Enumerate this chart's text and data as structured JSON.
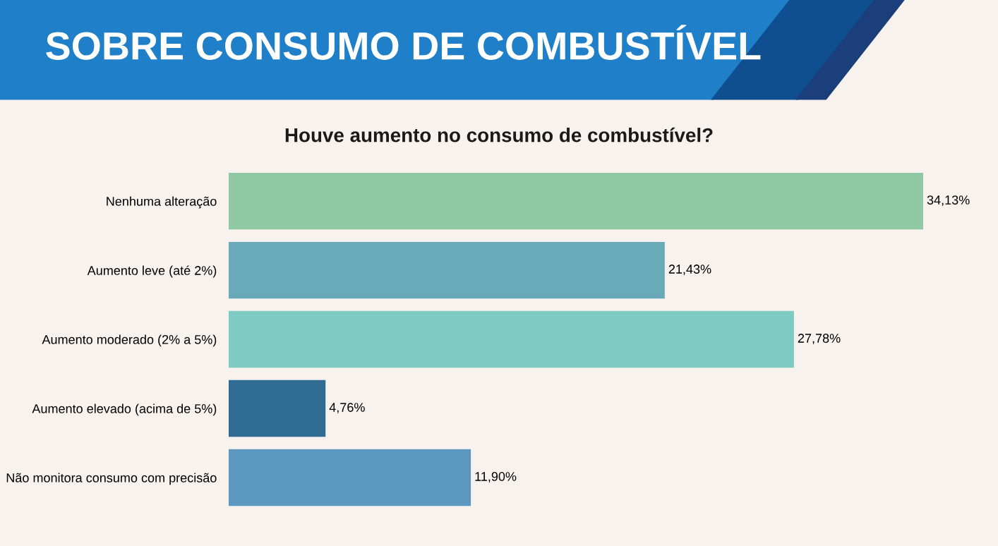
{
  "chart_data": {
    "type": "bar",
    "orientation": "horizontal",
    "title": "SOBRE CONSUMO DE COMBUSTÍVEL",
    "subtitle": "Houve aumento no consumo de combustível?",
    "categories": [
      "Nenhuma alteração",
      "Aumento leve (até 2%)",
      "Aumento moderado (2% a 5%)",
      "Aumento elevado (acima de 5%)",
      "Não monitora consumo com precisão"
    ],
    "values": [
      34.13,
      21.43,
      27.78,
      4.76,
      11.9
    ],
    "value_labels": [
      "34,13%",
      "21,43%",
      "27,78%",
      "4,76%",
      "11,90%"
    ],
    "colors": [
      "#8ec9a3",
      "#6aa9b8",
      "#7ecbc4",
      "#2f6b93",
      "#5b97be"
    ],
    "grid": false,
    "legend": false
  }
}
